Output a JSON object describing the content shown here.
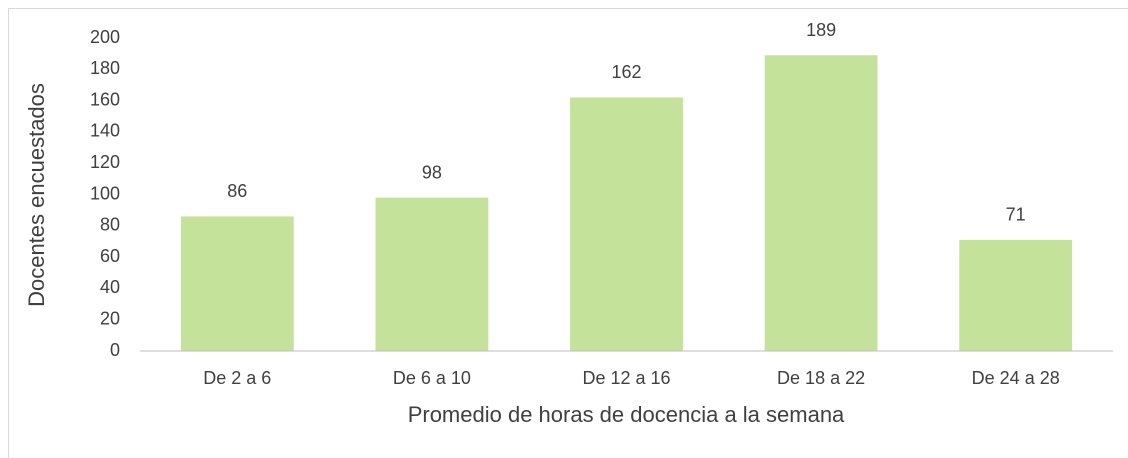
{
  "chart_data": {
    "type": "bar",
    "x_label": "Promedio de horas de docencia a la semana",
    "y_label": "Docentes encuestados",
    "categories": [
      "De 2 a 6",
      "De 6 a 10",
      "De 12 a 16",
      "De 18 a 22",
      "De 24 a 28"
    ],
    "values": [
      86,
      98,
      162,
      189,
      71
    ],
    "color": "#c5e29b",
    "ylim": [
      0,
      200
    ],
    "yticks": [
      0,
      20,
      40,
      60,
      80,
      100,
      120,
      140,
      160,
      180,
      200
    ],
    "grid": false
  }
}
